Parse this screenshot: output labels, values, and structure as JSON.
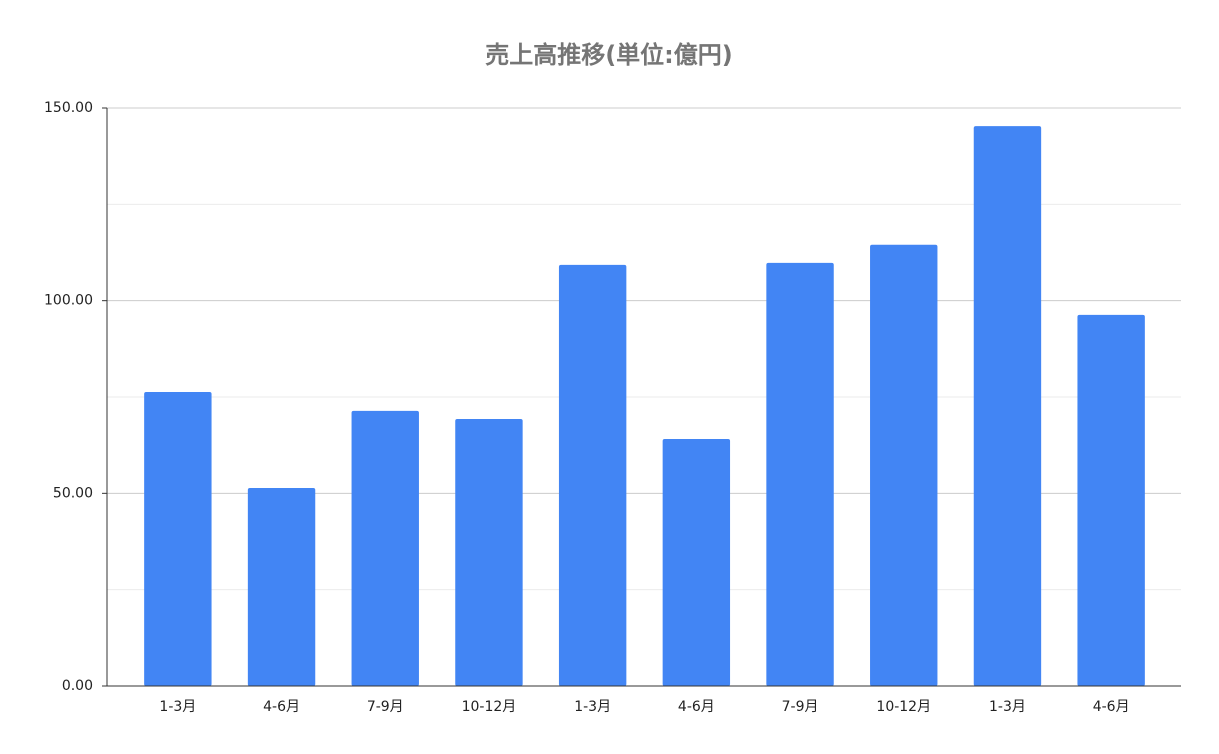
{
  "chart_data": {
    "type": "bar",
    "title": "売上高推移(単位:億円)",
    "categories": [
      "1-3月",
      "4-6月",
      "7-9月",
      "10-12月",
      "1-3月",
      "4-6月",
      "7-9月",
      "10-12月",
      "1-3月",
      "4-6月"
    ],
    "values": [
      76.3,
      51.4,
      71.4,
      69.3,
      109.3,
      64.1,
      109.8,
      114.5,
      145.3,
      96.3
    ],
    "color": "#4285f4",
    "ylim": [
      0,
      150
    ],
    "yticks": [
      {
        "value": 0,
        "label": "0.00"
      },
      {
        "value": 50,
        "label": "50.00"
      },
      {
        "value": 100,
        "label": "100.00"
      },
      {
        "value": 150,
        "label": "150.00"
      }
    ],
    "minor_yticks": [
      25,
      75,
      125
    ],
    "grid": true
  }
}
